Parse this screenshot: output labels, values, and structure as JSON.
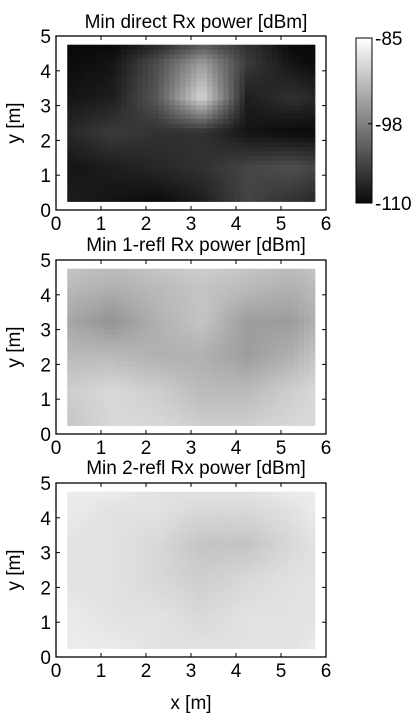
{
  "colors": {
    "low": "#0a0a0a",
    "high": "#ffffff",
    "axis": "#000000"
  },
  "colorbar": {
    "range": [
      -110,
      -85
    ],
    "tick_values": [
      -85,
      -98,
      -110
    ],
    "tick_labels": [
      "-85",
      "-98",
      "-110"
    ]
  },
  "shared_xlabel": "x [m]",
  "chart_data": [
    {
      "type": "heatmap",
      "title": "Min direct Rx power [dBm]",
      "xlabel": "",
      "ylabel": "y [m]",
      "xlim": [
        0,
        6
      ],
      "ylim": [
        0,
        5
      ],
      "xticks": [
        "0",
        "1",
        "2",
        "3",
        "4",
        "5",
        "6"
      ],
      "yticks": [
        "0",
        "1",
        "2",
        "3",
        "4",
        "5"
      ],
      "zlim": [
        -110,
        -85
      ],
      "data_extent": {
        "x": [
          0.25,
          5.75
        ],
        "y": [
          0.25,
          4.75
        ]
      },
      "x": [
        0.25,
        1.25,
        2.25,
        3.25,
        4.25,
        5.25,
        5.75
      ],
      "y": [
        0.25,
        1.25,
        2.25,
        3.25,
        4.25,
        4.75
      ],
      "z": [
        [
          -108,
          -109,
          -110,
          -108,
          -104,
          -106,
          -107
        ],
        [
          -109,
          -108,
          -107,
          -106,
          -104,
          -103,
          -104
        ],
        [
          -107,
          -105,
          -106,
          -106,
          -109,
          -110,
          -110
        ],
        [
          -109,
          -108,
          -102,
          -89,
          -108,
          -106,
          -107
        ],
        [
          -110,
          -109,
          -103,
          -95,
          -105,
          -109,
          -110
        ],
        [
          -110,
          -110,
          -107,
          -102,
          -106,
          -110,
          -110
        ]
      ]
    },
    {
      "type": "heatmap",
      "title": "Min 1-refl Rx power [dBm]",
      "xlabel": "",
      "ylabel": "y [m]",
      "xlim": [
        0,
        6
      ],
      "ylim": [
        0,
        5
      ],
      "xticks": [
        "0",
        "1",
        "2",
        "3",
        "4",
        "5",
        "6"
      ],
      "yticks": [
        "0",
        "1",
        "2",
        "3",
        "4",
        "5"
      ],
      "zlim": [
        -110,
        -85
      ],
      "data_extent": {
        "x": [
          0.25,
          5.75
        ],
        "y": [
          0.25,
          4.75
        ]
      },
      "x": [
        0.25,
        1.25,
        2.25,
        3.25,
        4.25,
        5.25,
        5.75
      ],
      "y": [
        0.25,
        1.25,
        2.25,
        3.25,
        4.25,
        4.75
      ],
      "z": [
        [
          -91,
          -89,
          -89,
          -90,
          -90,
          -89,
          -89
        ],
        [
          -90,
          -89,
          -90,
          -92,
          -92,
          -90,
          -89
        ],
        [
          -92,
          -92,
          -93,
          -93,
          -95,
          -93,
          -91
        ],
        [
          -94,
          -96,
          -93,
          -91,
          -95,
          -95,
          -93
        ],
        [
          -92,
          -93,
          -92,
          -91,
          -92,
          -93,
          -92
        ],
        [
          -91,
          -92,
          -91,
          -90,
          -91,
          -92,
          -91
        ]
      ]
    },
    {
      "type": "heatmap",
      "title": "Min 2-refl Rx power [dBm]",
      "xlabel": "x [m]",
      "ylabel": "y [m]",
      "xlim": [
        0,
        6
      ],
      "ylim": [
        0,
        5
      ],
      "xticks": [
        "0",
        "1",
        "2",
        "3",
        "4",
        "5",
        "6"
      ],
      "yticks": [
        "0",
        "1",
        "2",
        "3",
        "4",
        "5"
      ],
      "zlim": [
        -110,
        -85
      ],
      "data_extent": {
        "x": [
          0.25,
          5.75
        ],
        "y": [
          0.25,
          4.75
        ]
      },
      "x": [
        0.25,
        1.25,
        2.25,
        3.25,
        4.25,
        5.25,
        5.75
      ],
      "y": [
        0.25,
        1.25,
        2.25,
        3.25,
        4.25,
        4.75
      ],
      "z": [
        [
          -87,
          -87,
          -88,
          -88,
          -88,
          -88,
          -87
        ],
        [
          -87,
          -88,
          -88,
          -89,
          -88,
          -88,
          -88
        ],
        [
          -88,
          -88,
          -89,
          -90,
          -89,
          -88,
          -88
        ],
        [
          -88,
          -88,
          -89,
          -91,
          -91,
          -89,
          -88
        ],
        [
          -87,
          -88,
          -88,
          -89,
          -89,
          -88,
          -87
        ],
        [
          -87,
          -87,
          -88,
          -88,
          -88,
          -87,
          -87
        ]
      ]
    }
  ]
}
